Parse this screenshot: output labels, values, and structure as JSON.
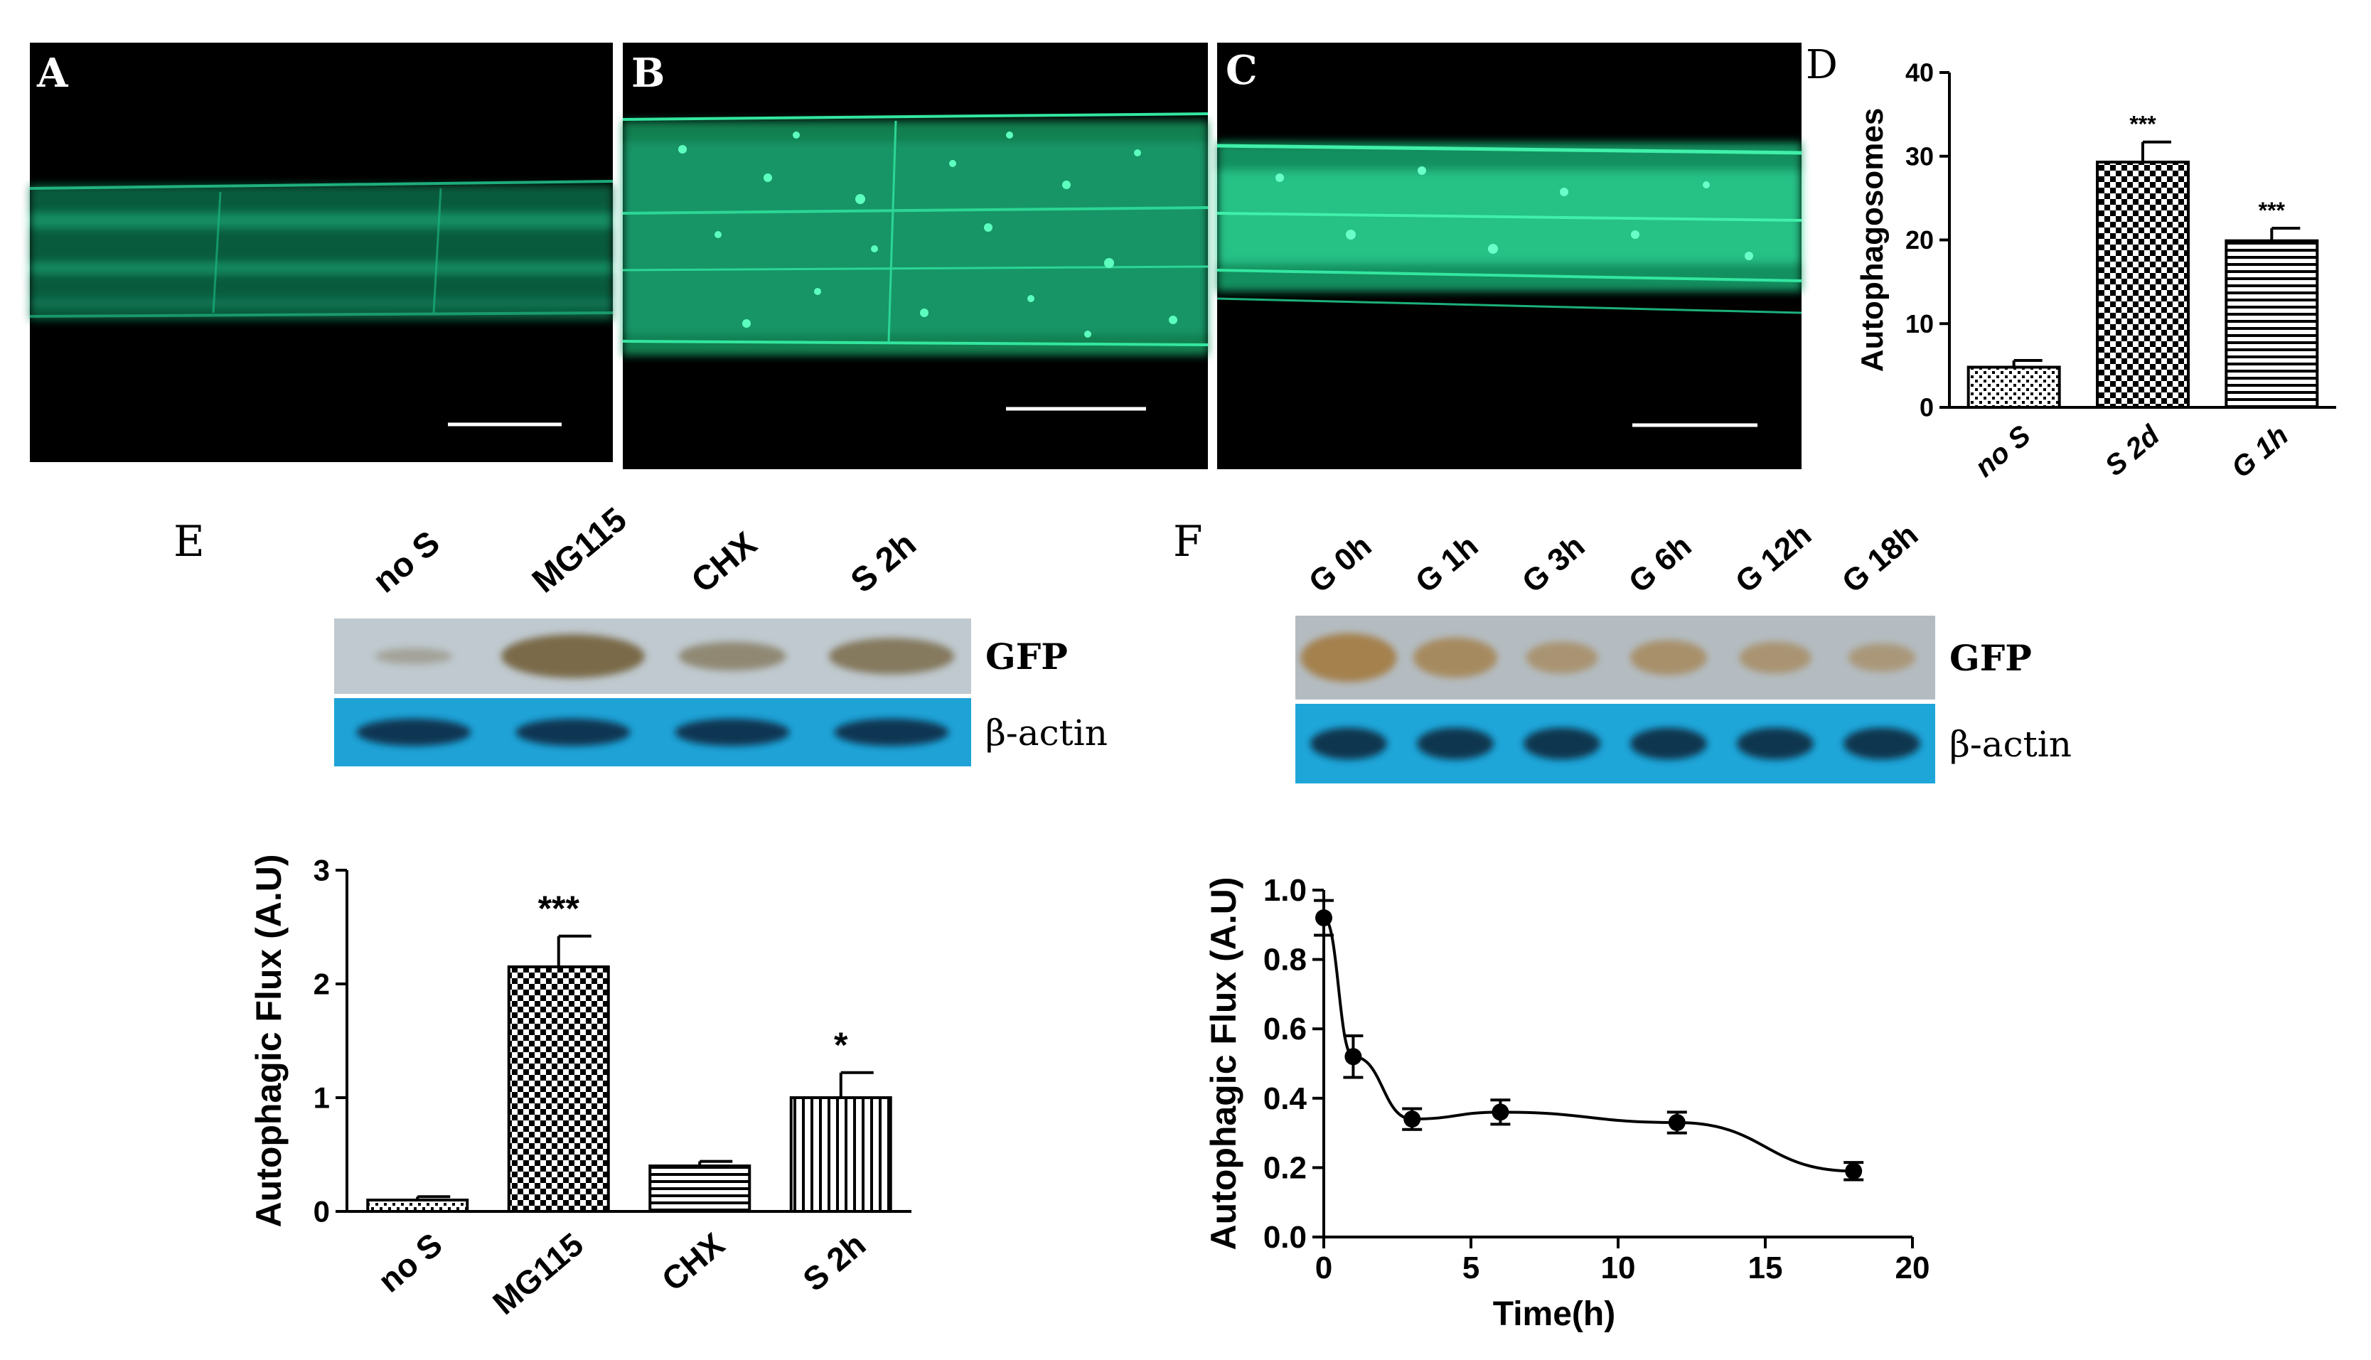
{
  "panels": {
    "A": "A",
    "B": "B",
    "C": "C",
    "D": "D",
    "E": "E",
    "F": "F"
  },
  "micrographs": [
    {
      "id": "A",
      "signal": "weak uniform membrane GFP",
      "color": "#1bbf86"
    },
    {
      "id": "B",
      "signal": "numerous autophagosome puncta",
      "color": "#22c58c"
    },
    {
      "id": "C",
      "signal": "bright dense GFP",
      "color": "#2ad694"
    }
  ],
  "blot_E": {
    "lanes": [
      "no S",
      "MG115",
      "CHX",
      "S 2h"
    ],
    "rows": [
      "GFP",
      "β-actin"
    ],
    "gfp_band_intensity": [
      0.08,
      1.0,
      0.5,
      0.75
    ],
    "colors": {
      "gfp_bg": "#bfc9cf",
      "gfp_band": "#7a6b4a",
      "actin_bg": "#1fa3d7",
      "actin_band": "#0d2c44"
    }
  },
  "blot_F": {
    "lanes": [
      "G 0h",
      "G 1h",
      "G 3h",
      "G 6h",
      "G 12h",
      "G 18h"
    ],
    "rows": [
      "GFP",
      "β-actin"
    ],
    "gfp_band_intensity": [
      1.0,
      0.75,
      0.5,
      0.6,
      0.5,
      0.4
    ],
    "colors": {
      "gfp_bg": "#b4bcc1",
      "gfp_band": "#a4814e",
      "actin_bg": "#1fa6d9",
      "actin_band": "#0d2a40"
    }
  },
  "chart_data": [
    {
      "id": "D",
      "type": "bar",
      "ylabel": "Autophagosomes",
      "xlabel": "",
      "categories": [
        "no S",
        "S 2d",
        "G 1h"
      ],
      "values": [
        4.8,
        29.3,
        19.9
      ],
      "errors": [
        0.8,
        2.4,
        1.5
      ],
      "significance": [
        "",
        "***",
        "***"
      ],
      "patterns": [
        "dots",
        "checker",
        "hlines"
      ],
      "ylim": [
        0,
        40
      ],
      "yticks": [
        0,
        10,
        20,
        30,
        40
      ]
    },
    {
      "id": "E",
      "type": "bar",
      "ylabel": "Autophagic Flux (A.U)",
      "xlabel": "",
      "categories": [
        "no S",
        "MG115",
        "CHX",
        "S 2h"
      ],
      "values": [
        0.1,
        2.15,
        0.4,
        1.0
      ],
      "errors": [
        0.03,
        0.27,
        0.04,
        0.22
      ],
      "significance": [
        "",
        "***",
        "",
        "*"
      ],
      "patterns": [
        "dots",
        "checker",
        "hlines",
        "vlines"
      ],
      "ylim": [
        0,
        3
      ],
      "yticks": [
        0,
        1,
        2,
        3
      ]
    },
    {
      "id": "F",
      "type": "line",
      "ylabel": "Autophagic Flux (A.U)",
      "xlabel": "Time(h)",
      "x": [
        0,
        1,
        3,
        6,
        12,
        18
      ],
      "y": [
        0.92,
        0.52,
        0.34,
        0.36,
        0.33,
        0.19
      ],
      "errors": [
        0.05,
        0.06,
        0.03,
        0.035,
        0.03,
        0.025
      ],
      "xlim": [
        0,
        20
      ],
      "ylim": [
        0,
        1.0
      ],
      "xticks": [
        0,
        5,
        10,
        15,
        20
      ],
      "yticks": [
        0.0,
        0.2,
        0.4,
        0.6,
        0.8,
        1.0
      ],
      "ytick_labels": [
        "0.0",
        "0.2",
        "0.4",
        "0.6",
        "0.8",
        "1.0"
      ]
    }
  ]
}
